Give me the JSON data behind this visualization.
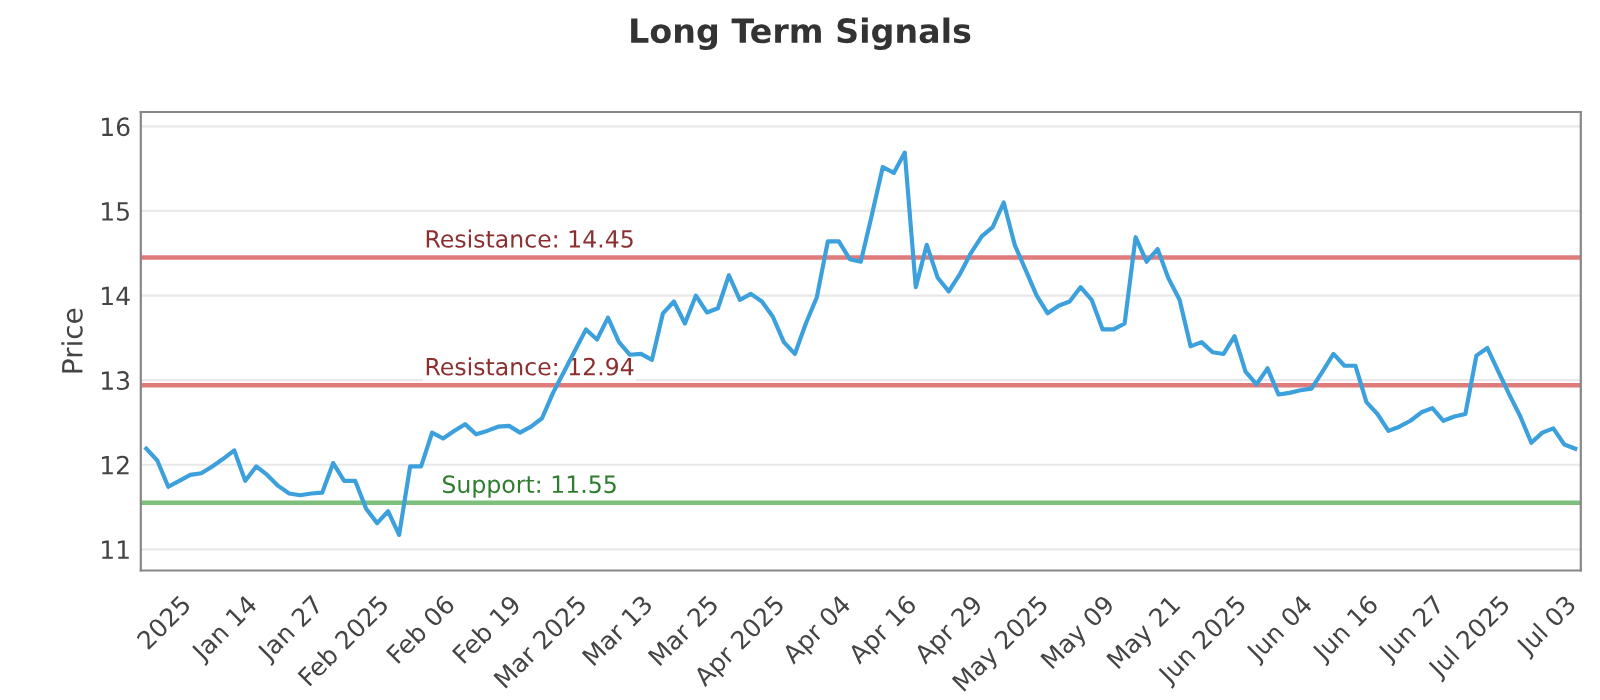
{
  "chart_data": {
    "type": "line",
    "title": "Long Term Signals",
    "ylabel": "Price",
    "categories": [
      null,
      null,
      null,
      "2025",
      null,
      null,
      null,
      null,
      null,
      "Jan 14",
      null,
      null,
      null,
      null,
      null,
      "Jan 27",
      null,
      null,
      null,
      null,
      null,
      "Feb 2025",
      null,
      null,
      null,
      null,
      null,
      "Feb 06",
      null,
      null,
      null,
      null,
      null,
      "Feb 19",
      null,
      null,
      null,
      null,
      null,
      "Mar 2025",
      null,
      null,
      null,
      null,
      null,
      "Mar 13",
      null,
      null,
      null,
      null,
      null,
      "Mar 25",
      null,
      null,
      null,
      null,
      null,
      "Apr 2025",
      null,
      null,
      null,
      null,
      null,
      "Apr 04",
      null,
      null,
      null,
      null,
      null,
      "Apr 16",
      null,
      null,
      null,
      null,
      null,
      "Apr 29",
      null,
      null,
      null,
      null,
      null,
      "May 2025",
      null,
      null,
      null,
      null,
      null,
      "May 09",
      null,
      null,
      null,
      null,
      null,
      "May 21",
      null,
      null,
      null,
      null,
      null,
      "Jun 2025",
      null,
      null,
      null,
      null,
      null,
      "Jun 04",
      null,
      null,
      null,
      null,
      null,
      "Jun 16",
      null,
      null,
      null,
      null,
      null,
      "Jun 27",
      null,
      null,
      null,
      null,
      null,
      "Jul 2025",
      null,
      null,
      null,
      null,
      null,
      "Jul 03",
      null
    ],
    "series": [
      {
        "color": "#3ca0dc",
        "values": [
          12.19,
          12.05,
          11.74,
          11.81,
          11.88,
          11.9,
          11.98,
          12.07,
          12.17,
          11.81,
          11.98,
          11.88,
          11.75,
          11.66,
          11.64,
          11.66,
          11.67,
          12.02,
          11.81,
          11.81,
          11.48,
          11.31,
          11.45,
          11.17,
          11.98,
          11.98,
          12.38,
          12.31,
          12.4,
          12.48,
          12.36,
          12.4,
          12.45,
          12.46,
          12.38,
          12.45,
          12.55,
          12.85,
          13.1,
          13.35,
          13.6,
          13.48,
          13.74,
          13.45,
          13.3,
          13.31,
          13.24,
          13.79,
          13.93,
          13.67,
          14.0,
          13.8,
          13.85,
          14.24,
          13.95,
          14.02,
          13.93,
          13.75,
          13.45,
          13.31,
          13.67,
          13.98,
          14.64,
          14.64,
          14.43,
          14.4,
          14.95,
          15.52,
          15.45,
          15.69,
          14.1,
          14.6,
          14.21,
          14.05,
          14.25,
          14.5,
          14.7,
          14.81,
          15.1,
          14.6,
          14.3,
          14.0,
          13.79,
          13.88,
          13.93,
          14.1,
          13.95,
          13.6,
          13.6,
          13.67,
          14.69,
          14.4,
          14.55,
          14.2,
          13.95,
          13.4,
          13.45,
          13.33,
          13.31,
          13.52,
          13.1,
          12.95,
          13.14,
          12.83,
          12.85,
          12.88,
          12.9,
          13.1,
          13.31,
          13.17,
          13.17,
          12.74,
          12.6,
          12.4,
          12.45,
          12.52,
          12.62,
          12.67,
          12.52,
          12.57,
          12.6,
          13.29,
          13.38,
          13.1,
          12.83,
          12.57,
          12.26,
          12.38,
          12.43,
          12.24,
          12.19
        ]
      }
    ],
    "ylim": [
      10.75,
      16.17
    ],
    "yticks": [
      11,
      12,
      13,
      14,
      15,
      16
    ],
    "grid": "y",
    "marker": "none",
    "line_style": "solid",
    "ref_lines": [
      {
        "axis": "y",
        "value": 14.45,
        "label": "Resistance: 14.45",
        "color": "#e07b7b"
      },
      {
        "axis": "y",
        "value": 12.94,
        "label": "Resistance: 12.94",
        "color": "#e07b7b"
      },
      {
        "axis": "y",
        "value": 11.55,
        "label": "Support: 11.55",
        "color": "#7cc07c"
      }
    ]
  }
}
